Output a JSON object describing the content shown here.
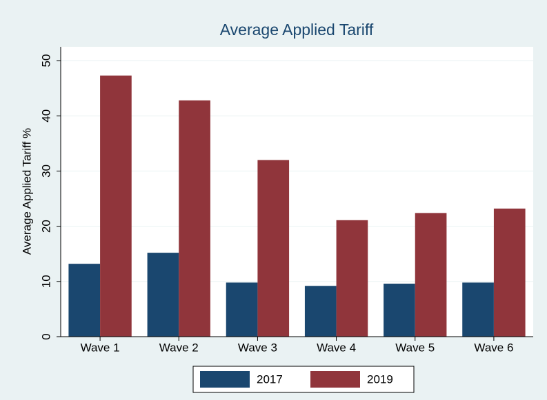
{
  "chart_data": {
    "type": "bar",
    "title": "Average Applied Tariff",
    "y_label": "Average Applied Tariff %",
    "categories": [
      "Wave 1",
      "Wave 2",
      "Wave 3",
      "Wave 4",
      "Wave 5",
      "Wave 6"
    ],
    "series": [
      {
        "name": "2017",
        "color": "#1a476f",
        "values": [
          13.2,
          15.2,
          9.8,
          9.2,
          9.6,
          9.8
        ]
      },
      {
        "name": "2019",
        "color": "#90353b",
        "values": [
          47.3,
          42.8,
          32.0,
          21.1,
          22.4,
          23.2
        ]
      }
    ],
    "ylim": [
      0,
      52.5
    ],
    "yticks": [
      0,
      10,
      20,
      30,
      40,
      50
    ],
    "grid": true,
    "legend": "bottom"
  }
}
